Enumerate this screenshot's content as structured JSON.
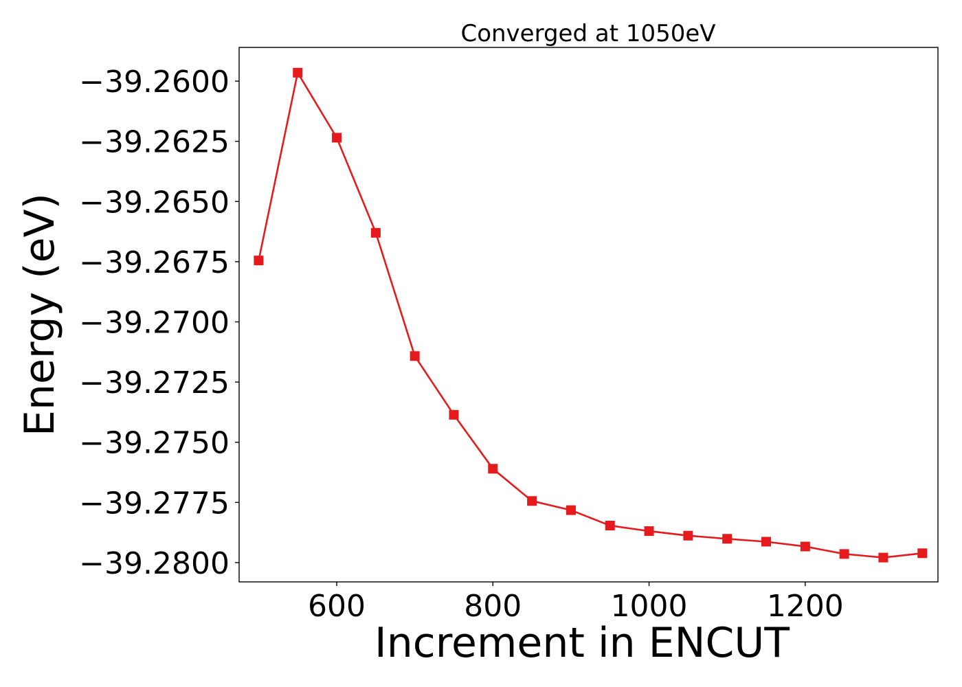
{
  "chart_data": {
    "type": "line",
    "title": "Converged at 1050eV",
    "xlabel": "Increment in ENCUT",
    "ylabel": "Energy (eV)",
    "xlim": [
      475,
      1370
    ],
    "ylim": [
      -39.2808,
      -39.2586
    ],
    "xticks": [
      600,
      800,
      1000,
      1200
    ],
    "xtick_labels": [
      "600",
      "800",
      "1000",
      "1200"
    ],
    "yticks": [
      -39.26,
      -39.2625,
      -39.265,
      -39.2675,
      -39.27,
      -39.2725,
      -39.275,
      -39.2775,
      -39.28
    ],
    "ytick_labels": [
      "−39.2600",
      "−39.2625",
      "−39.2650",
      "−39.2675",
      "−39.2700",
      "−39.2725",
      "−39.2750",
      "−39.2775",
      "−39.2800"
    ],
    "grid": false,
    "series": [
      {
        "color": "#e41a1c",
        "marker": "square",
        "x": [
          500,
          550,
          600,
          650,
          700,
          750,
          800,
          850,
          900,
          950,
          1000,
          1050,
          1100,
          1150,
          1200,
          1250,
          1300,
          1350
        ],
        "y": [
          -39.26745,
          -39.25965,
          -39.26235,
          -39.2663,
          -39.27142,
          -39.27386,
          -39.2761,
          -39.27744,
          -39.27782,
          -39.27846,
          -39.27869,
          -39.27888,
          -39.27901,
          -39.27913,
          -39.27933,
          -39.27964,
          -39.27979,
          -39.27961
        ]
      }
    ]
  }
}
